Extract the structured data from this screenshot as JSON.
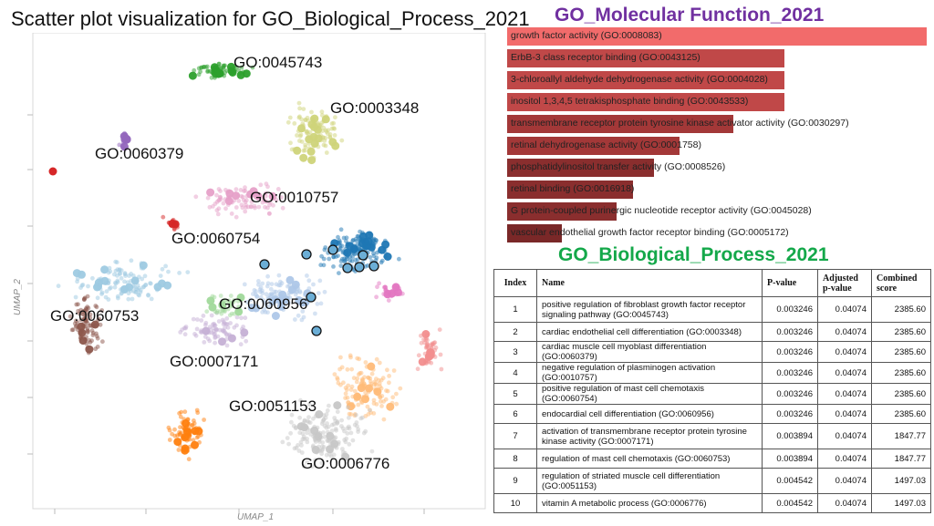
{
  "scatter": {
    "title": "Scatter plot visualization for GO_Biological_Process_2021",
    "xlabel": "UMAP_1",
    "ylabel": "UMAP_2",
    "cluster_labels": [
      "GO:0045743",
      "GO:0003348",
      "GO:0060379",
      "GO:0010757",
      "GO:0060754",
      "GO:0060956",
      "GO:0060753",
      "GO:0007171",
      "GO:0051153",
      "GO:0006776"
    ]
  },
  "chart_data": [
    {
      "type": "bar",
      "title": "GO_Molecular Function_2021",
      "orientation": "horizontal",
      "categories": [
        "growth factor activity (GO:0008083)",
        "ErbB-3 class receptor binding (GO:0043125)",
        "3-chloroallyl aldehyde dehydrogenase activity (GO:0004028)",
        "inositol 1,3,4,5 tetrakisphosphate binding (GO:0043533)",
        "transmembrane receptor protein tyrosine kinase activator activity (GO:0030297)",
        "retinal dehydrogenase activity (GO:0001758)",
        "phosphatidylinositol transfer activity (GO:0008526)",
        "retinal binding (GO:0016918)",
        "G protein-coupled purinergic nucleotide receptor activity (GO:0045028)",
        "vascular endothelial growth factor receptor binding (GO:0005172)"
      ],
      "values": [
        1.0,
        0.66,
        0.66,
        0.66,
        0.54,
        0.41,
        0.35,
        0.3,
        0.26,
        0.13
      ],
      "colors": [
        "#f26b6b",
        "#c04848",
        "#c04848",
        "#c04848",
        "#a33838",
        "#a33838",
        "#8a2e2e",
        "#8a2e2e",
        "#8a2e2e",
        "#7a2828"
      ]
    },
    {
      "type": "table",
      "title": "GO_Biological_Process_2021",
      "columns": [
        "Index",
        "Name",
        "P-value",
        "Adjusted p-value",
        "Combined score"
      ],
      "rows": [
        [
          "1",
          "positive regulation of fibroblast growth factor receptor signaling pathway (GO:0045743)",
          "0.003246",
          "0.04074",
          "2385.60"
        ],
        [
          "2",
          "cardiac endothelial cell differentiation (GO:0003348)",
          "0.003246",
          "0.04074",
          "2385.60"
        ],
        [
          "3",
          "cardiac muscle cell myoblast differentiation (GO:0060379)",
          "0.003246",
          "0.04074",
          "2385.60"
        ],
        [
          "4",
          "negative regulation of plasminogen activation (GO:0010757)",
          "0.003246",
          "0.04074",
          "2385.60"
        ],
        [
          "5",
          "positive regulation of mast cell chemotaxis (GO:0060754)",
          "0.003246",
          "0.04074",
          "2385.60"
        ],
        [
          "6",
          "endocardial cell differentiation (GO:0060956)",
          "0.003246",
          "0.04074",
          "2385.60"
        ],
        [
          "7",
          "activation of transmembrane receptor protein tyrosine kinase activity (GO:0007171)",
          "0.003894",
          "0.04074",
          "1847.77"
        ],
        [
          "8",
          "regulation of mast cell chemotaxis (GO:0060753)",
          "0.003894",
          "0.04074",
          "1847.77"
        ],
        [
          "9",
          "regulation of striated muscle cell differentiation (GO:0051153)",
          "0.004542",
          "0.04074",
          "1497.03"
        ],
        [
          "10",
          "vitamin A metabolic process (GO:0006776)",
          "0.004542",
          "0.04074",
          "1497.03"
        ]
      ]
    }
  ]
}
